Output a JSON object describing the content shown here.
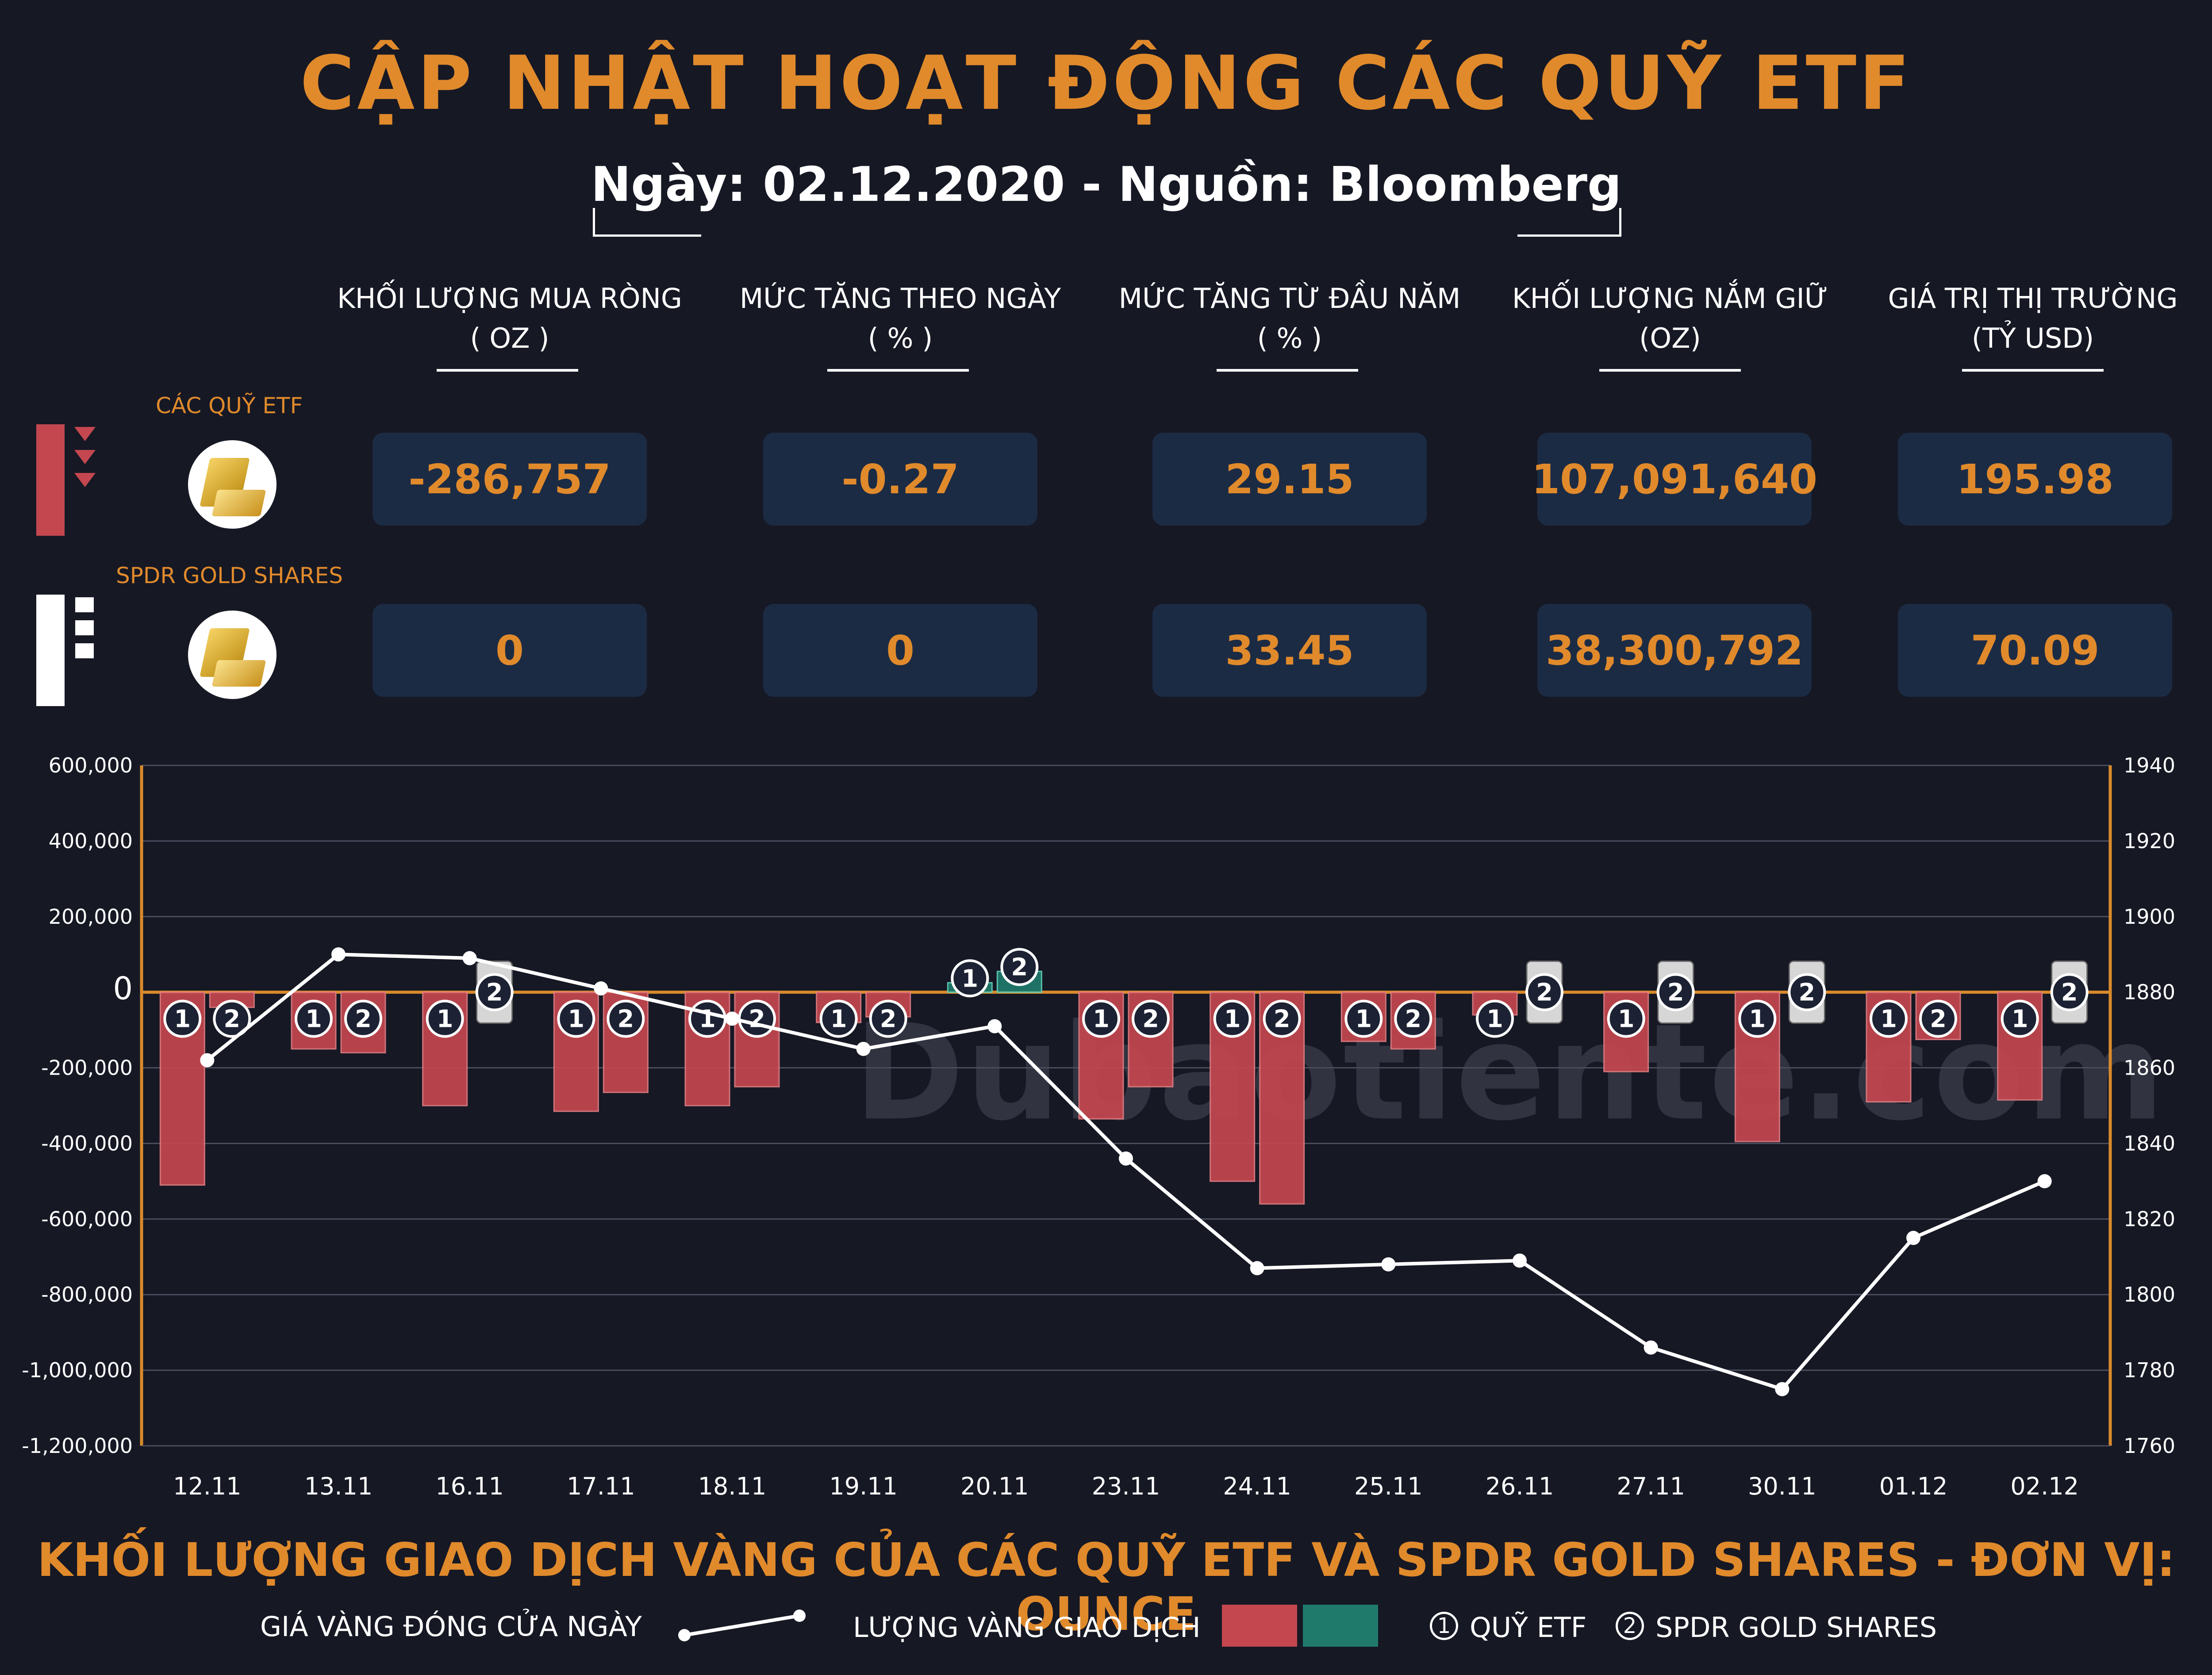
{
  "header": {
    "title": "CẬP NHẬT HOẠT ĐỘNG CÁC QUỸ ETF",
    "subtitle": "Ngày: 02.12.2020 - Nguồn: Bloomberg"
  },
  "table": {
    "columns": [
      {
        "label": "KHỐI LƯỢNG MUA RÒNG",
        "unit": "( OZ )"
      },
      {
        "label": "MỨC TĂNG THEO NGÀY",
        "unit": "( % )"
      },
      {
        "label": "MỨC TĂNG TỪ ĐẦU NĂM",
        "unit": "( % )"
      },
      {
        "label": "KHỐI LƯỢNG NẮM GIỮ",
        "unit": "(OZ)"
      },
      {
        "label": "GIÁ TRỊ THỊ TRƯỜNG",
        "unit": "(TỶ USD)"
      }
    ],
    "rows": [
      {
        "label": "CÁC QUỸ ETF",
        "values": [
          "-286,757",
          "-0.27",
          "29.15",
          "107,091,640",
          "195.98"
        ]
      },
      {
        "label": "SPDR GOLD SHARES",
        "values": [
          "0",
          "0",
          "33.45",
          "38,300,792",
          "70.09"
        ]
      }
    ]
  },
  "watermark": "Dubaotiente.com",
  "chart_data": {
    "type": "bar",
    "title": "KHỐI LƯỢNG GIAO DỊCH VÀNG CỦA CÁC QUỸ ETF VÀ SPDR GOLD SHARES - ĐƠN VỊ: OUNCE",
    "categories": [
      "12.11",
      "13.11",
      "16.11",
      "17.11",
      "18.11",
      "19.11",
      "20.11",
      "23.11",
      "24.11",
      "25.11",
      "26.11",
      "27.11",
      "30.11",
      "01.12",
      "02.12"
    ],
    "series": [
      {
        "name": "QUỸ ETF",
        "marker": "1",
        "values": [
          -510000,
          -150000,
          -300000,
          -315000,
          -300000,
          -80000,
          25000,
          -335000,
          -500000,
          -130000,
          -60000,
          -210000,
          -395000,
          -290000,
          -285000
        ]
      },
      {
        "name": "SPDR GOLD SHARES",
        "marker": "2",
        "values": [
          -40000,
          -160000,
          0,
          -265000,
          -250000,
          -65000,
          55000,
          -250000,
          -560000,
          -150000,
          0,
          0,
          0,
          -125000,
          0
        ]
      }
    ],
    "line": {
      "name": "GIÁ VÀNG ĐÓNG CỬA NGÀY",
      "values": [
        1862,
        1890,
        1889,
        1881,
        1873,
        1865,
        1871,
        1836,
        1807,
        1808,
        1809,
        1786,
        1775,
        1815,
        1830
      ]
    },
    "left_axis": {
      "range": [
        -1200000,
        600000
      ],
      "ticks": [
        "600,000",
        "400,000",
        "200,000",
        "0",
        "-200,000",
        "-400,000",
        "-600,000",
        "-800,000",
        "-1,000,000",
        "-1,200,000"
      ]
    },
    "right_axis": {
      "range": [
        1760,
        1940
      ],
      "ticks": [
        "1940",
        "1920",
        "1900",
        "1880",
        "1860",
        "1840",
        "1820",
        "1800",
        "1780",
        "1760"
      ]
    },
    "colors": {
      "negative": "#c4474f",
      "positive": "#1f7a6b",
      "line": "#ffffff",
      "axis": "#d98a2b"
    }
  },
  "legend": {
    "line_label": "GIÁ VÀNG ĐÓNG CỬA NGÀY",
    "bars_label": "LƯỢNG VÀNG GIAO DỊCH",
    "series1": {
      "num": "1",
      "label": "QUỸ ETF"
    },
    "series2": {
      "num": "2",
      "label": "SPDR GOLD SHARES"
    }
  }
}
